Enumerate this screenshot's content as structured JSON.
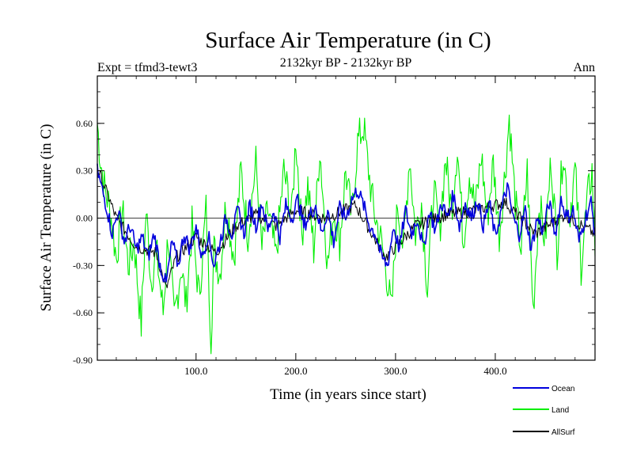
{
  "chart_data": {
    "type": "line",
    "title": "Surface Air Temperature (in C)",
    "subtitle_left": "Expt = tfmd3-tewt3",
    "subtitle_center": "2132kyr BP - 2132kyr BP",
    "subtitle_right": "Ann",
    "xlabel": "Time (in years since start)",
    "ylabel": "Surface Air Temperature (in C)",
    "xlim": [
      1,
      500
    ],
    "ylim": [
      -0.9,
      0.9
    ],
    "x_ticks": [
      100,
      200,
      300,
      400
    ],
    "x_tick_labels": [
      "100.0",
      "200.0",
      "300.0",
      "400.0"
    ],
    "y_ticks": [
      -0.9,
      -0.6,
      -0.3,
      0.0,
      0.3,
      0.6
    ],
    "y_tick_labels": [
      "-0.90",
      "-0.60",
      "-0.30",
      "0.00",
      "0.30",
      "0.60"
    ],
    "zero_line": 0.0,
    "series": [
      {
        "name": "Land",
        "color": "#00ee00",
        "anchors_x": [
          1,
          4,
          8,
          14,
          20,
          26,
          32,
          38,
          45,
          50,
          55,
          60,
          67,
          72,
          78,
          85,
          90,
          96,
          103,
          110,
          115,
          118,
          124,
          130,
          138,
          145,
          152,
          160,
          166,
          172,
          180,
          188,
          196,
          200,
          206,
          212,
          218,
          224,
          232,
          238,
          244,
          250,
          256,
          262,
          268,
          273,
          278,
          284,
          290,
          296,
          302,
          308,
          314,
          320,
          326,
          332,
          338,
          344,
          350,
          356,
          362,
          368,
          374,
          380,
          386,
          392,
          398,
          404,
          410,
          414,
          420,
          426,
          432,
          438,
          444,
          450,
          456,
          462,
          468,
          474,
          480,
          486,
          492,
          497,
          500
        ],
        "anchors_y": [
          0.6,
          0.38,
          0.2,
          0.05,
          -0.25,
          0.05,
          -0.3,
          -0.15,
          -0.68,
          0.05,
          -0.4,
          -0.2,
          -0.6,
          -0.1,
          -0.65,
          -0.3,
          -0.55,
          -0.05,
          -0.5,
          0.05,
          -0.75,
          -0.2,
          -0.35,
          0.1,
          -0.25,
          0.3,
          -0.1,
          0.35,
          -0.2,
          0.05,
          -0.25,
          0.3,
          0.02,
          0.52,
          -0.1,
          0.2,
          -0.2,
          0.45,
          -0.3,
          0.05,
          -0.15,
          0.3,
          0.0,
          0.48,
          0.58,
          0.3,
          0.05,
          -0.1,
          -0.3,
          -0.6,
          0.1,
          -0.2,
          0.4,
          -0.1,
          0.1,
          -0.45,
          0.2,
          -0.1,
          0.38,
          0.05,
          0.45,
          -0.15,
          0.3,
          0.05,
          0.4,
          0.0,
          0.35,
          -0.1,
          0.3,
          0.64,
          0.1,
          -0.2,
          0.3,
          -0.58,
          0.1,
          -0.15,
          0.38,
          -0.2,
          0.45,
          0.0,
          0.3,
          -0.3,
          0.1,
          0.3,
          -0.2
        ],
        "values_note": "annual values 1-500 summarised by the anchor points above"
      },
      {
        "name": "Ocean",
        "color": "#0000dd",
        "anchors_x": [
          1,
          5,
          10,
          16,
          22,
          28,
          34,
          40,
          46,
          52,
          58,
          64,
          70,
          76,
          82,
          88,
          94,
          100,
          106,
          112,
          118,
          124,
          130,
          136,
          142,
          148,
          154,
          160,
          166,
          172,
          178,
          184,
          190,
          196,
          202,
          208,
          214,
          220,
          226,
          232,
          238,
          244,
          250,
          256,
          262,
          268,
          274,
          280,
          286,
          292,
          298,
          304,
          310,
          316,
          322,
          328,
          334,
          340,
          346,
          352,
          358,
          364,
          370,
          376,
          382,
          388,
          394,
          400,
          406,
          412,
          418,
          424,
          430,
          436,
          442,
          448,
          454,
          460,
          466,
          472,
          478,
          484,
          490,
          496,
          500
        ],
        "anchors_y": [
          0.3,
          0.2,
          0.08,
          -0.1,
          0.05,
          -0.15,
          -0.05,
          -0.2,
          -0.12,
          -0.25,
          -0.1,
          -0.3,
          -0.42,
          -0.15,
          -0.3,
          -0.1,
          -0.2,
          -0.05,
          -0.25,
          -0.1,
          -0.3,
          -0.15,
          0.0,
          -0.1,
          0.05,
          -0.1,
          0.08,
          -0.05,
          0.1,
          -0.08,
          0.05,
          -0.12,
          0.08,
          0.0,
          0.12,
          -0.05,
          0.02,
          0.08,
          -0.1,
          0.05,
          -0.15,
          0.06,
          0.0,
          0.12,
          0.18,
          0.08,
          -0.05,
          -0.1,
          -0.25,
          -0.3,
          -0.05,
          -0.2,
          0.05,
          -0.1,
          0.0,
          -0.2,
          0.05,
          -0.08,
          0.1,
          0.0,
          0.15,
          -0.05,
          0.1,
          0.0,
          0.12,
          -0.05,
          0.1,
          -0.12,
          0.05,
          0.2,
          0.0,
          -0.1,
          0.05,
          -0.2,
          0.0,
          -0.08,
          0.1,
          -0.1,
          0.12,
          0.0,
          0.05,
          -0.15,
          0.0,
          0.1,
          -0.1
        ],
        "values_note": "annual values 1-500 summarised by the anchor points above"
      },
      {
        "name": "AllSurf",
        "color": "#000000",
        "anchors_x": [
          1,
          20,
          40,
          60,
          70,
          80,
          100,
          120,
          140,
          160,
          180,
          200,
          230,
          260,
          290,
          320,
          350,
          380,
          410,
          440,
          470,
          500
        ],
        "anchors_y": [
          0.32,
          0.0,
          -0.18,
          -0.22,
          -0.45,
          -0.25,
          -0.12,
          -0.22,
          -0.05,
          0.02,
          -0.05,
          0.05,
          0.0,
          0.08,
          -0.25,
          -0.05,
          0.02,
          0.05,
          0.1,
          -0.1,
          0.02,
          -0.1
        ],
        "values_note": "mostly overlaps Ocean series"
      }
    ],
    "legend": [
      "Ocean",
      "Land",
      "AllSurf"
    ],
    "legend_position": "bottom-right",
    "grid": false
  }
}
